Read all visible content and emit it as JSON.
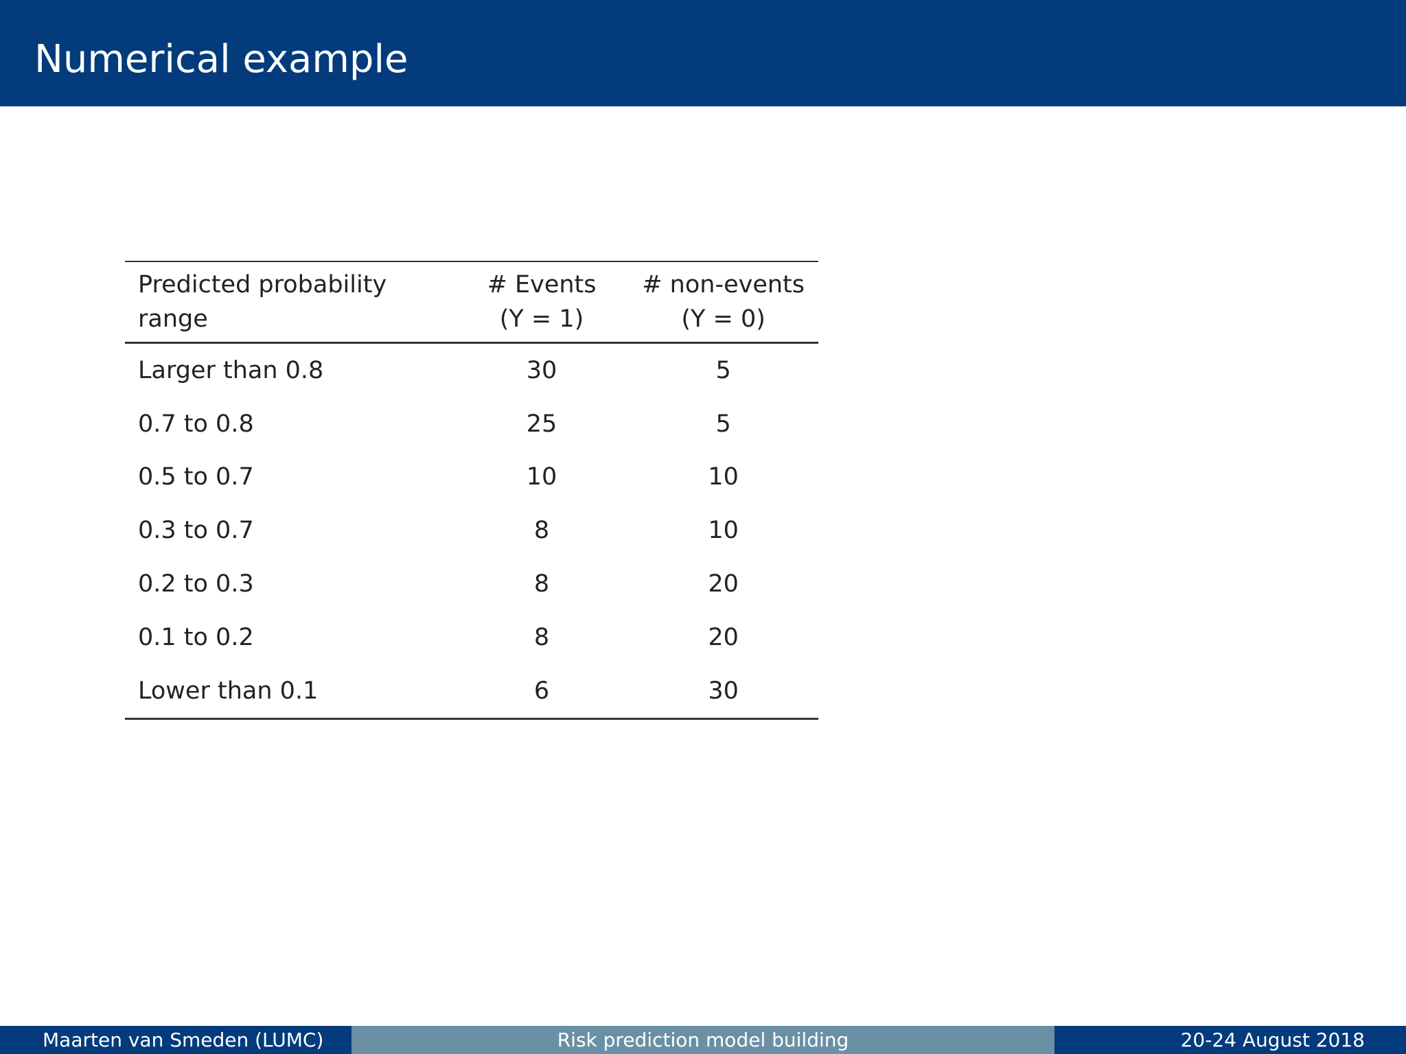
{
  "slide": {
    "title": "Numerical example"
  },
  "table": {
    "headers": {
      "range": [
        "Predicted probability",
        "range"
      ],
      "events": [
        "# Events",
        "(Y = 1)"
      ],
      "non_events": [
        "# non-events",
        "(Y = 0)"
      ]
    },
    "rows": [
      {
        "range": "Larger than 0.8",
        "events": "30",
        "non_events": "5"
      },
      {
        "range": "0.7 to 0.8",
        "events": "25",
        "non_events": "5"
      },
      {
        "range": "0.5 to 0.7",
        "events": "10",
        "non_events": "10"
      },
      {
        "range": "0.3 to 0.7",
        "events": "8",
        "non_events": "10"
      },
      {
        "range": "0.2 to 0.3",
        "events": "8",
        "non_events": "20"
      },
      {
        "range": "0.1 to 0.2",
        "events": "8",
        "non_events": "20"
      },
      {
        "range": "Lower than 0.1",
        "events": "6",
        "non_events": "30"
      }
    ]
  },
  "footer": {
    "author": "Maarten van Smeden  (LUMC)",
    "course": "Risk prediction model building",
    "date": "20-24 August 2018"
  },
  "colors": {
    "header_bar": "#033b7c",
    "footer_dark": "#033b7c",
    "footer_mid": "#6a90a6"
  }
}
